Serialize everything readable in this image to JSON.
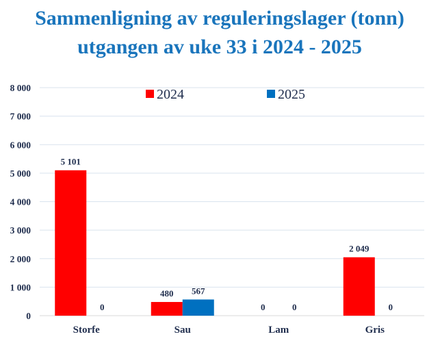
{
  "title_lines": [
    "Sammenligning av reguleringslager (tonn)",
    "utgangen av uke 33 i 2024 - 2025"
  ],
  "chart_data": {
    "type": "bar",
    "title": "Sammenligning av reguleringslager (tonn) utgangen av uke 33 i 2024 - 2025",
    "categories": [
      "Storfe",
      "Sau",
      "Lam",
      "Gris"
    ],
    "series": [
      {
        "name": "2024",
        "color": "#ff0000",
        "values": [
          5101,
          480,
          0,
          2049
        ],
        "labels": [
          "5 101",
          "480",
          "0",
          "2 049"
        ]
      },
      {
        "name": "2025",
        "color": "#0070c0",
        "values": [
          0,
          567,
          0,
          0
        ],
        "labels": [
          "0",
          "567",
          "0",
          "0"
        ]
      }
    ],
    "ylim": [
      0,
      8000
    ],
    "yticks": [
      0,
      1000,
      2000,
      3000,
      4000,
      5000,
      6000,
      7000,
      8000
    ],
    "ytick_labels": [
      "0",
      "1 000",
      "2 000",
      "3 000",
      "4 000",
      "5 000",
      "6 000",
      "7 000",
      "8 000"
    ],
    "grid": true,
    "legend_position": "top-center"
  }
}
